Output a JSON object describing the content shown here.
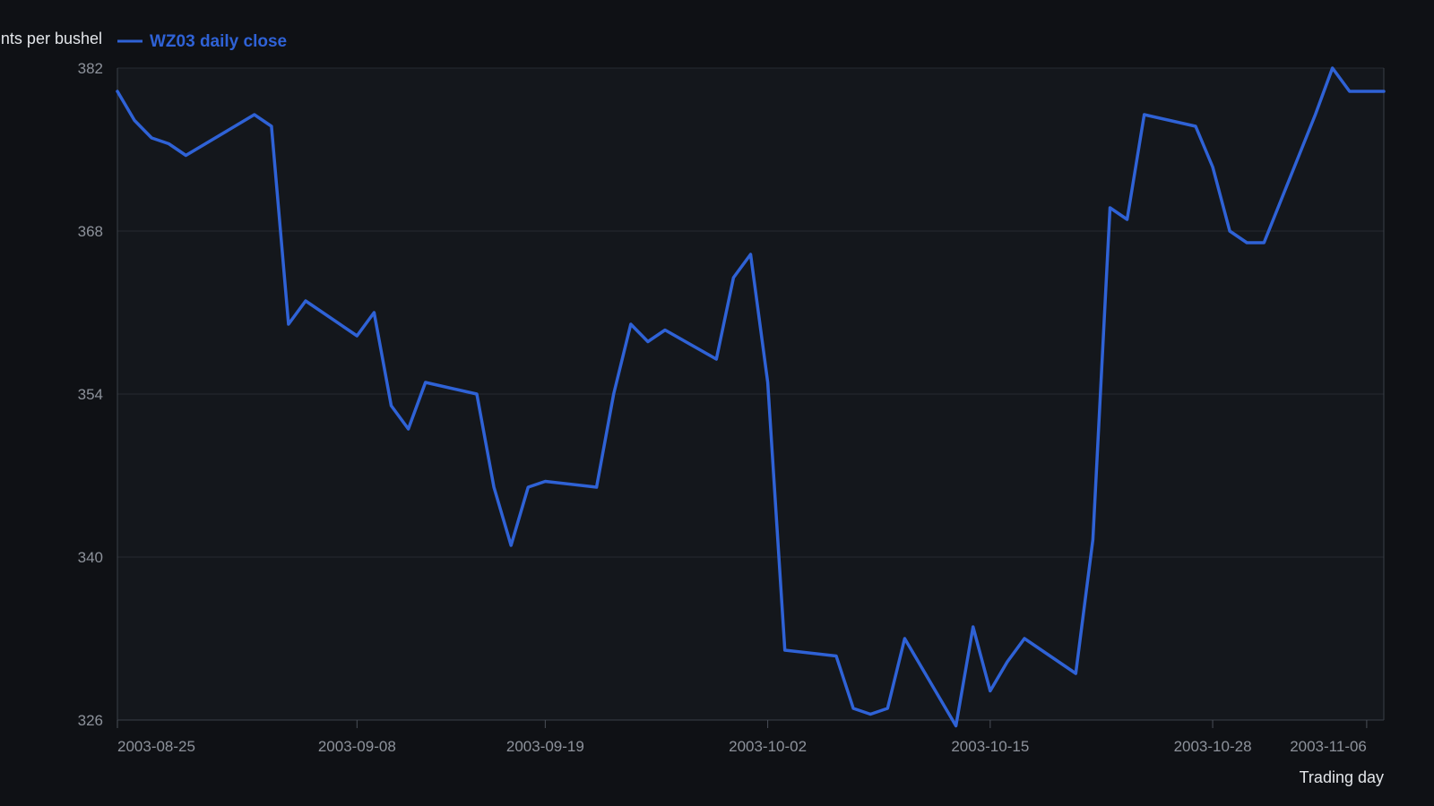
{
  "chart_data": {
    "type": "line",
    "title": "",
    "xlabel": "Trading day",
    "ylabel": "Cents per bushel",
    "ylim": [
      326,
      382
    ],
    "yticks": [
      326,
      340,
      354,
      368,
      382
    ],
    "xtick_labels": [
      "2003-08-25",
      "2003-09-08",
      "2003-09-19",
      "2003-10-02",
      "2003-10-15",
      "2003-10-28",
      "2003-11-06"
    ],
    "grid": "horizontal",
    "legend_position": "top-left",
    "series": [
      {
        "name": "WZ03 daily close",
        "color": "#2f62d6",
        "x": [
          "2003-08-25",
          "2003-08-26",
          "2003-08-27",
          "2003-08-28",
          "2003-08-29",
          "2003-09-02",
          "2003-09-03",
          "2003-09-04",
          "2003-09-05",
          "2003-09-08",
          "2003-09-09",
          "2003-09-10",
          "2003-09-11",
          "2003-09-12",
          "2003-09-15",
          "2003-09-16",
          "2003-09-17",
          "2003-09-18",
          "2003-09-19",
          "2003-09-22",
          "2003-09-23",
          "2003-09-24",
          "2003-09-25",
          "2003-09-26",
          "2003-09-29",
          "2003-09-30",
          "2003-10-01",
          "2003-10-02",
          "2003-10-03",
          "2003-10-06",
          "2003-10-07",
          "2003-10-08",
          "2003-10-09",
          "2003-10-10",
          "2003-10-13",
          "2003-10-14",
          "2003-10-15",
          "2003-10-16",
          "2003-10-17",
          "2003-10-20",
          "2003-10-21",
          "2003-10-22",
          "2003-10-23",
          "2003-10-24",
          "2003-10-27",
          "2003-10-28",
          "2003-10-29",
          "2003-10-30",
          "2003-10-31",
          "2003-11-03",
          "2003-11-04",
          "2003-11-05",
          "2003-11-06",
          "2003-11-07"
        ],
        "values": [
          380,
          377.5,
          376,
          375.5,
          374.5,
          378,
          377,
          360,
          362,
          359,
          361,
          353,
          351,
          355,
          354,
          346,
          341,
          346,
          346.5,
          346,
          354,
          360,
          358.5,
          359.5,
          357,
          364,
          366,
          355,
          332,
          331.5,
          327,
          326.5,
          327,
          333,
          325.5,
          334,
          328.5,
          331,
          333,
          330,
          341.5,
          370,
          369,
          378,
          377,
          373.5,
          368,
          367,
          367,
          378,
          382,
          380,
          380,
          380
        ]
      }
    ]
  }
}
